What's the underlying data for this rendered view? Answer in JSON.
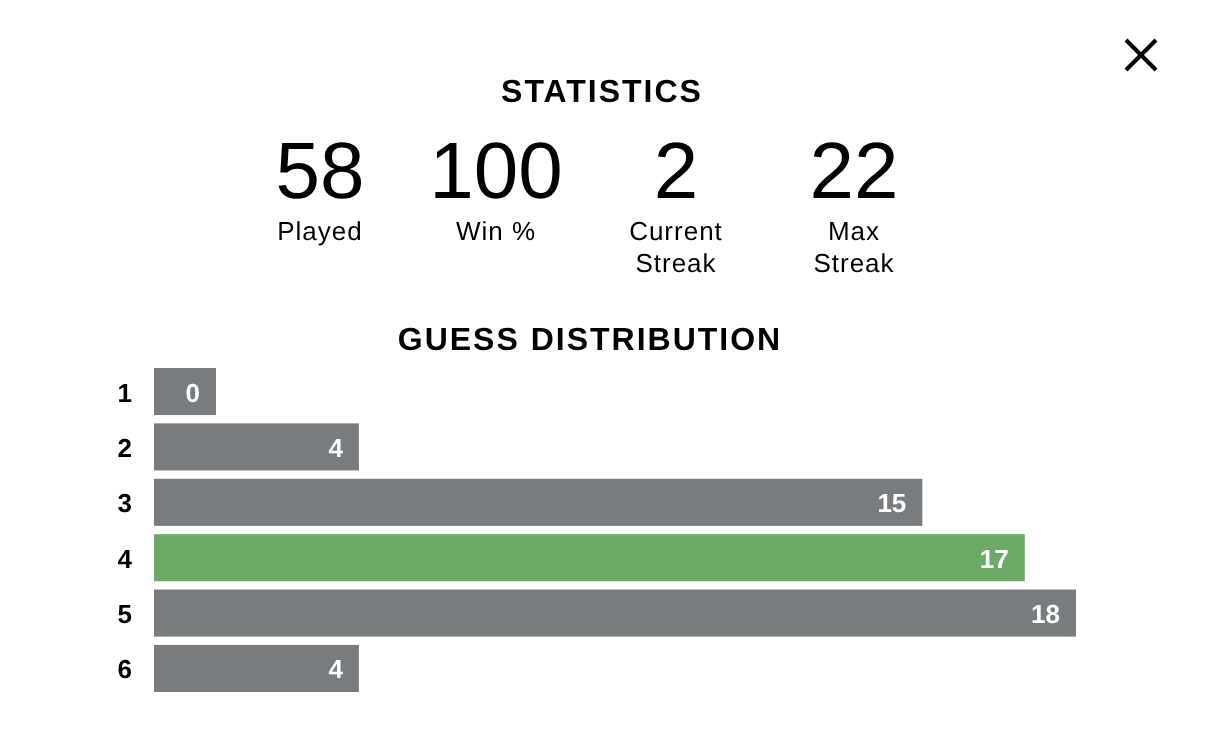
{
  "chart_data": [
    {
      "type": "other",
      "title": "STATISTICS",
      "categories": [
        "Played",
        "Win %",
        "Current Streak",
        "Max Streak"
      ],
      "values": [
        58,
        100,
        2,
        22
      ],
      "data_labels": true
    },
    {
      "type": "bar",
      "orientation": "horizontal",
      "title": "GUESS DISTRIBUTION",
      "categories": [
        "1",
        "2",
        "3",
        "4",
        "5",
        "6"
      ],
      "values": [
        0,
        4,
        15,
        17,
        18,
        4
      ],
      "colors": [
        "#787c7e",
        "#787c7e",
        "#787c7e",
        "#6aaa64",
        "#787c7e",
        "#787c7e"
      ],
      "data_labels": true
    }
  ]
}
